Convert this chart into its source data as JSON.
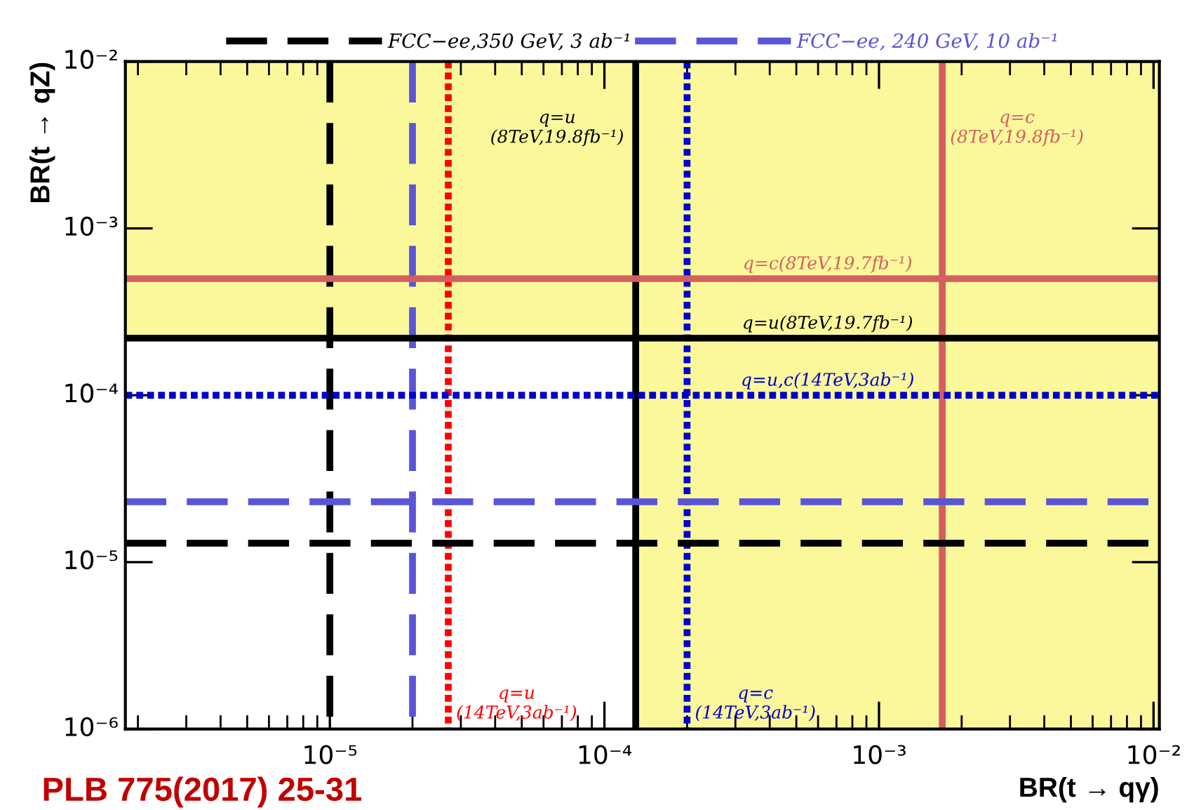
{
  "chart_data": {
    "type": "line",
    "xlabel": "BR(t → qγ)",
    "ylabel": "BR(t → qZ)",
    "log": "xy",
    "xlim": [
      1.8e-06,
      0.0105
    ],
    "ylim": [
      1e-06,
      0.01
    ],
    "xticks": [
      {
        "value": 1e-05,
        "label": "10⁻⁵"
      },
      {
        "value": 0.0001,
        "label": "10⁻⁴"
      },
      {
        "value": 0.001,
        "label": "10⁻³"
      },
      {
        "value": 0.01,
        "label": "10⁻²"
      }
    ],
    "yticks": [
      {
        "value": 1e-06,
        "label": "10⁻⁶"
      },
      {
        "value": 1e-05,
        "label": "10⁻⁵"
      },
      {
        "value": 0.0001,
        "label": "10⁻⁴"
      },
      {
        "value": 0.001,
        "label": "10⁻³"
      },
      {
        "value": 0.01,
        "label": "10⁻²"
      }
    ],
    "grid": false,
    "legend": "top",
    "bands": [
      {
        "axis": "y",
        "from": 0.00022,
        "to": 0.01,
        "color": "#fbf89c"
      },
      {
        "axis": "x",
        "from": 0.00013,
        "to": 0.0105,
        "color": "#fbf89c"
      }
    ],
    "ref_lines": [
      {
        "axis": "x",
        "value": 1e-05,
        "color": "#000000",
        "line_style": "dashed"
      },
      {
        "axis": "x",
        "value": 2e-05,
        "color": "#5a55d6",
        "line_style": "dashed"
      },
      {
        "axis": "x",
        "value": 2.7e-05,
        "color": "#ff0000",
        "line_style": "dotted"
      },
      {
        "axis": "x",
        "value": 0.00013,
        "color": "#000000",
        "line_style": "solid"
      },
      {
        "axis": "x",
        "value": 0.0002,
        "color": "#0000cc",
        "line_style": "dotted"
      },
      {
        "axis": "x",
        "value": 0.0017,
        "color": "#d35f5f",
        "line_style": "solid"
      },
      {
        "axis": "y",
        "value": 0.0005,
        "color": "#d35f5f",
        "line_style": "solid"
      },
      {
        "axis": "y",
        "value": 0.00022,
        "color": "#000000",
        "line_style": "solid"
      },
      {
        "axis": "y",
        "value": 0.0001,
        "color": "#0000cc",
        "line_style": "dotted"
      },
      {
        "axis": "y",
        "value": 2.3e-05,
        "color": "#5a55d6",
        "line_style": "dashed",
        "label": "FCC−ee, 240 GeV, 10 ab⁻¹"
      },
      {
        "axis": "y",
        "value": 1.3e-05,
        "color": "#000000",
        "line_style": "dashed",
        "label": "FCC−ee,350 GeV, 3 ab⁻¹"
      }
    ],
    "annotations": [
      {
        "text": "q=u\n(8TeV,19.8fb⁻¹)",
        "x": 0.00013,
        "y": 0.004
      },
      {
        "text": "q=c\n(8TeV,19.8fb⁻¹)",
        "x": 0.0017,
        "y": 0.004
      },
      {
        "text": "q=c(8TeV,19.7fb⁻¹)",
        "x": 0.00065,
        "y": 0.0005
      },
      {
        "text": "q=u(8TeV,19.7fb⁻¹)",
        "x": 0.00065,
        "y": 0.00022
      },
      {
        "text": "q=u,c(14TeV,3ab⁻¹)",
        "x": 0.00065,
        "y": 0.0001
      },
      {
        "text": "q=u\n(14TeV,3ab⁻¹)",
        "x": 2.7e-05,
        "y": 1.1e-06
      },
      {
        "text": "q=c\n(14TeV,3ab⁻¹)",
        "x": 0.0002,
        "y": 1.1e-06
      },
      "PLB 775(2017) 25-31"
    ]
  }
}
